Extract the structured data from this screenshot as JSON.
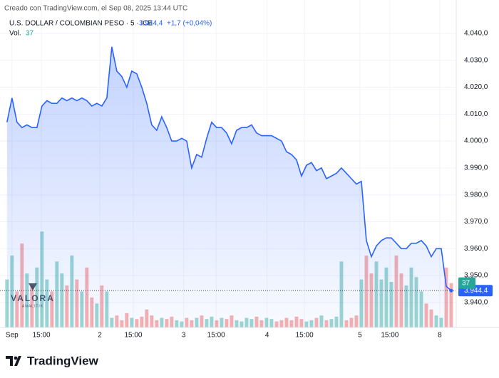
{
  "chart_data": {
    "type": "line",
    "credit": "Creado con TradingView.com, el Sep 08, 2025 13:44 UTC",
    "title": "U.S. DOLLAR / COLOMBIAN PESO · 5 · ICE",
    "price_label": "3.944,4",
    "change_label": "+1,7 (+0,04%)",
    "volume_label": "Vol.",
    "watermark": [
      "VALORA",
      "ANALITIK"
    ],
    "brand": "TradingView",
    "xlim": [
      -1.4,
      90
    ],
    "xticks": [
      {
        "value": 1,
        "label": "Sep"
      },
      {
        "value": 6.9,
        "label": "15:00"
      },
      {
        "value": 18.6,
        "label": "2"
      },
      {
        "value": 25.3,
        "label": "15:00"
      },
      {
        "value": 35.4,
        "label": "3"
      },
      {
        "value": 41.9,
        "label": "15:00"
      },
      {
        "value": 52.1,
        "label": "4"
      },
      {
        "value": 59.6,
        "label": "15:00"
      },
      {
        "value": 70.7,
        "label": "5"
      },
      {
        "value": 76.7,
        "label": "15:00"
      },
      {
        "value": 86.7,
        "label": "8"
      }
    ],
    "ylim": [
      3930.7,
      4046.6
    ],
    "yticks": [
      {
        "value": 3940,
        "label": "3.940,0"
      },
      {
        "value": 3950,
        "label": "3.950,0"
      },
      {
        "value": 3960,
        "label": "3.960,0"
      },
      {
        "value": 3970,
        "label": "3.970,0"
      },
      {
        "value": 3980,
        "label": "3.980,0"
      },
      {
        "value": 3990,
        "label": "3.990,0"
      },
      {
        "value": 4000,
        "label": "4.000,0"
      },
      {
        "value": 4010,
        "label": "4.010,0"
      },
      {
        "value": 4020,
        "label": "4.020,0"
      },
      {
        "value": 4030,
        "label": "4.030,0"
      },
      {
        "value": 4040,
        "label": "4.040,0"
      }
    ],
    "y2lim": [
      0,
      260
    ],
    "grid": true,
    "series": [
      {
        "name": "USD/COP",
        "color": "#2962ff",
        "values": [
          4007,
          4016,
          4007,
          4005,
          4006,
          4005,
          4005,
          4013,
          4015,
          4014,
          4014,
          4016,
          4015,
          4016,
          4015,
          4016,
          4015,
          4013,
          4014,
          4013,
          4016,
          4035,
          4026,
          4024,
          4020,
          4026,
          4025,
          4020,
          4014,
          4006,
          4004,
          4009,
          4005,
          4000,
          4000,
          4001,
          4000,
          3990,
          3995,
          3994,
          4001,
          4007,
          4005,
          4005,
          4003,
          3999,
          4004,
          4005,
          4005,
          4006,
          4003,
          4002,
          4002,
          4002,
          4001,
          4000,
          3996,
          3995,
          3993,
          3987,
          3991,
          3992,
          3989,
          3990,
          3986,
          3987,
          3988,
          3990,
          3988,
          3986,
          3984,
          3985,
          3963,
          3957,
          3961,
          3963,
          3964,
          3964,
          3962,
          3960,
          3960,
          3962,
          3962,
          3963,
          3961,
          3957,
          3960,
          3960,
          3946,
          3944.4
        ]
      },
      {
        "name": "Vol.",
        "axis": "y2",
        "up_color": "#26a69a",
        "down_color": "#ef5350",
        "values": [
          40,
          60,
          30,
          70,
          45,
          35,
          50,
          80,
          40,
          30,
          55,
          45,
          35,
          60,
          40,
          30,
          50,
          25,
          20,
          35,
          30,
          8,
          10,
          6,
          12,
          8,
          7,
          9,
          15,
          10,
          6,
          8,
          7,
          9,
          6,
          5,
          8,
          6,
          8,
          10,
          7,
          9,
          6,
          8,
          7,
          10,
          6,
          5,
          8,
          7,
          9,
          6,
          8,
          7,
          5,
          6,
          8,
          6,
          9,
          7,
          5,
          6,
          8,
          10,
          6,
          7,
          9,
          55,
          6,
          8,
          10,
          40,
          60,
          45,
          55,
          40,
          50,
          38,
          60,
          45,
          35,
          50,
          42,
          30,
          20,
          15,
          10,
          8,
          50,
          37
        ]
      }
    ]
  }
}
